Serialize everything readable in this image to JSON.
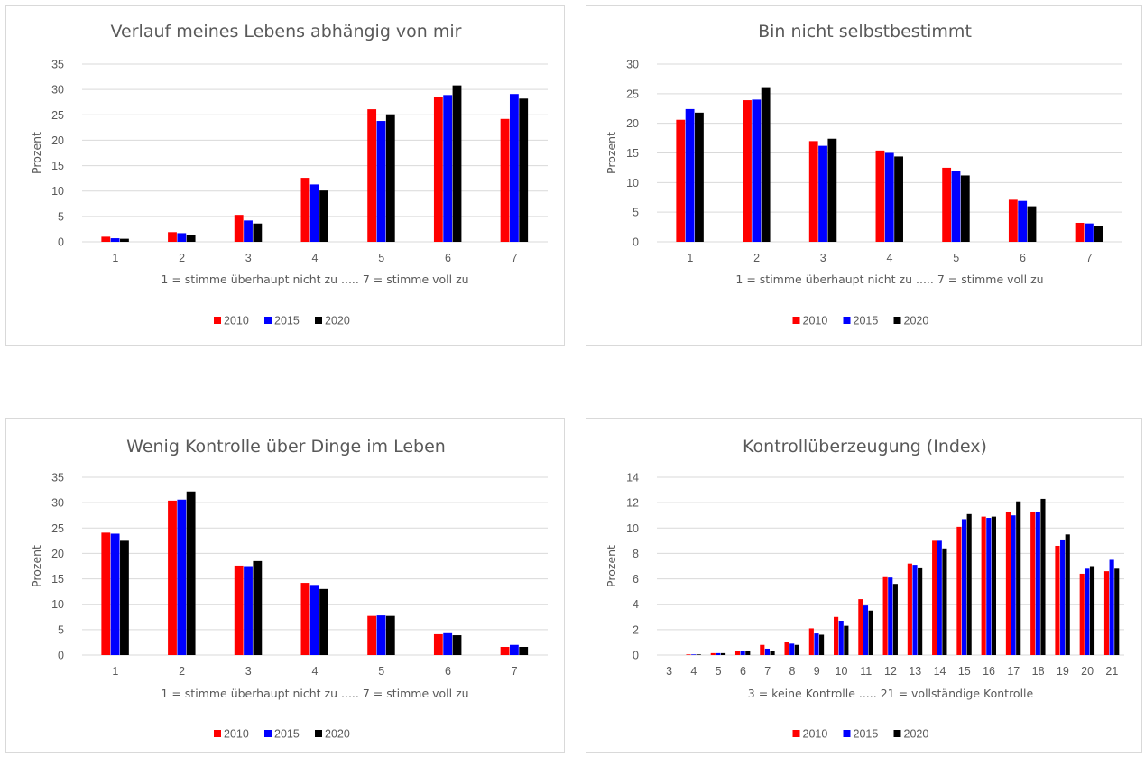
{
  "chart_data": [
    {
      "type": "bar",
      "title": "Verlauf meines Lebens abhängig von mir",
      "xlabel": "1 = stimme überhaupt nicht zu ..... 7 = stimme voll zu",
      "ylabel": "Prozent",
      "ylim": [
        0,
        35
      ],
      "yticks": [
        0,
        5,
        10,
        15,
        20,
        25,
        30,
        35
      ],
      "grid": true,
      "legend": "bottom",
      "categories": [
        "1",
        "2",
        "3",
        "4",
        "5",
        "6",
        "7"
      ],
      "series": [
        {
          "name": "2010",
          "color": "#ff0000",
          "values": [
            1.0,
            1.9,
            5.3,
            12.6,
            26.1,
            28.6,
            24.2
          ]
        },
        {
          "name": "2015",
          "color": "#0000ff",
          "values": [
            0.7,
            1.7,
            4.2,
            11.3,
            23.8,
            28.9,
            29.1
          ]
        },
        {
          "name": "2020",
          "color": "#000000",
          "values": [
            0.6,
            1.4,
            3.6,
            10.1,
            25.1,
            30.8,
            28.2
          ]
        }
      ]
    },
    {
      "type": "bar",
      "title": "Bin nicht selbstbestimmt",
      "xlabel": "1 = stimme überhaupt nicht zu ..... 7 = stimme voll zu",
      "ylabel": "Prozent",
      "ylim": [
        0,
        30
      ],
      "yticks": [
        0,
        5,
        10,
        15,
        20,
        25,
        30
      ],
      "grid": true,
      "legend": "bottom",
      "categories": [
        "1",
        "2",
        "3",
        "4",
        "5",
        "6",
        "7"
      ],
      "series": [
        {
          "name": "2010",
          "color": "#ff0000",
          "values": [
            20.6,
            23.9,
            17.0,
            15.4,
            12.5,
            7.1,
            3.2
          ]
        },
        {
          "name": "2015",
          "color": "#0000ff",
          "values": [
            22.4,
            24.0,
            16.2,
            15.0,
            11.9,
            6.9,
            3.1
          ]
        },
        {
          "name": "2020",
          "color": "#000000",
          "values": [
            21.8,
            26.1,
            17.4,
            14.4,
            11.2,
            6.0,
            2.7
          ]
        }
      ]
    },
    {
      "type": "bar",
      "title": "Wenig Kontrolle über Dinge im Leben",
      "xlabel": "1 = stimme überhaupt nicht zu ..... 7 = stimme voll zu",
      "ylabel": "Prozent",
      "ylim": [
        0,
        35
      ],
      "yticks": [
        0,
        5,
        10,
        15,
        20,
        25,
        30,
        35
      ],
      "grid": true,
      "legend": "bottom",
      "categories": [
        "1",
        "2",
        "3",
        "4",
        "5",
        "6",
        "7"
      ],
      "series": [
        {
          "name": "2010",
          "color": "#ff0000",
          "values": [
            24.1,
            30.4,
            17.6,
            14.2,
            7.7,
            4.1,
            1.6
          ]
        },
        {
          "name": "2015",
          "color": "#0000ff",
          "values": [
            23.9,
            30.6,
            17.5,
            13.8,
            7.8,
            4.3,
            2.0
          ]
        },
        {
          "name": "2020",
          "color": "#000000",
          "values": [
            22.5,
            32.2,
            18.5,
            13.0,
            7.7,
            3.9,
            1.6
          ]
        }
      ]
    },
    {
      "type": "bar",
      "title": "Kontrollüberzeugung  (Index)",
      "xlabel": "3 = keine Kontrolle ..... 21 = vollständige Kontrolle",
      "ylabel": "Prozent",
      "ylim": [
        0,
        14
      ],
      "yticks": [
        0,
        2,
        4,
        6,
        8,
        10,
        12,
        14
      ],
      "grid": true,
      "legend": "bottom",
      "categories": [
        "3",
        "4",
        "5",
        "6",
        "7",
        "8",
        "9",
        "10",
        "11",
        "12",
        "13",
        "14",
        "15",
        "16",
        "17",
        "18",
        "19",
        "20",
        "21"
      ],
      "series": [
        {
          "name": "2010",
          "color": "#ff0000",
          "values": [
            0.0,
            0.05,
            0.15,
            0.35,
            0.8,
            1.05,
            2.1,
            3.0,
            4.4,
            6.2,
            7.2,
            9.0,
            10.1,
            10.9,
            11.3,
            11.3,
            8.6,
            6.4,
            6.6
          ]
        },
        {
          "name": "2015",
          "color": "#0000ff",
          "values": [
            0.0,
            0.05,
            0.15,
            0.35,
            0.5,
            0.9,
            1.7,
            2.7,
            3.9,
            6.1,
            7.1,
            9.0,
            10.7,
            10.8,
            11.0,
            11.3,
            9.1,
            6.8,
            7.5
          ]
        },
        {
          "name": "2020",
          "color": "#000000",
          "values": [
            0.0,
            0.05,
            0.15,
            0.3,
            0.35,
            0.8,
            1.6,
            2.3,
            3.5,
            5.6,
            6.9,
            8.4,
            11.1,
            10.9,
            12.1,
            12.3,
            9.5,
            7.0,
            6.8
          ]
        }
      ]
    }
  ]
}
